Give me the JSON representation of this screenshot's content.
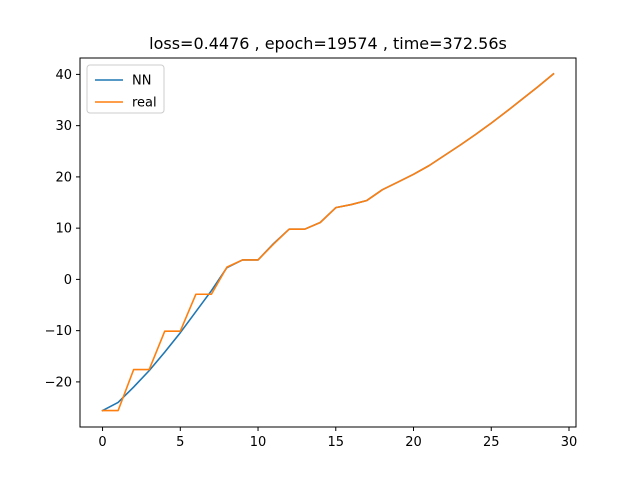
{
  "chart_data": {
    "type": "line",
    "title": "loss=0.4476 , epoch=19574 , time=372.56s",
    "xlabel": "",
    "ylabel": "",
    "xlim": [
      -1.45,
      30.45
    ],
    "ylim": [
      -28.8,
      43.2
    ],
    "xticks": [
      0,
      5,
      10,
      15,
      20,
      25,
      30
    ],
    "yticks": [
      -20,
      -10,
      0,
      10,
      20,
      30,
      40
    ],
    "grid": false,
    "legend_position": "top-left",
    "x": [
      0,
      1,
      2,
      3,
      4,
      5,
      6,
      7,
      8,
      9,
      10,
      11,
      12,
      13,
      14,
      15,
      16,
      17,
      18,
      19,
      20,
      21,
      22,
      23,
      24,
      25,
      26,
      27,
      28,
      29
    ],
    "series": [
      {
        "name": "NN",
        "color": "#1f77b4",
        "values": [
          -25.6,
          -24.0,
          -21.0,
          -17.8,
          -14.2,
          -10.4,
          -6.3,
          -2.2,
          2.3,
          3.8,
          3.8,
          7.0,
          9.8,
          9.8,
          11.1,
          14.0,
          14.6,
          15.4,
          17.5,
          19.0,
          20.5,
          22.2,
          24.2,
          26.2,
          28.3,
          30.5,
          32.8,
          35.2,
          37.6,
          40.1
        ]
      },
      {
        "name": "real",
        "color": "#ff7f0e",
        "values": [
          -25.6,
          -25.6,
          -17.6,
          -17.6,
          -10.1,
          -10.1,
          -2.9,
          -2.9,
          2.4,
          3.8,
          3.8,
          6.9,
          9.8,
          9.8,
          11.1,
          14.0,
          14.6,
          15.4,
          17.5,
          19.0,
          20.5,
          22.2,
          24.2,
          26.2,
          28.3,
          30.5,
          32.8,
          35.2,
          37.6,
          40.1
        ]
      }
    ]
  }
}
